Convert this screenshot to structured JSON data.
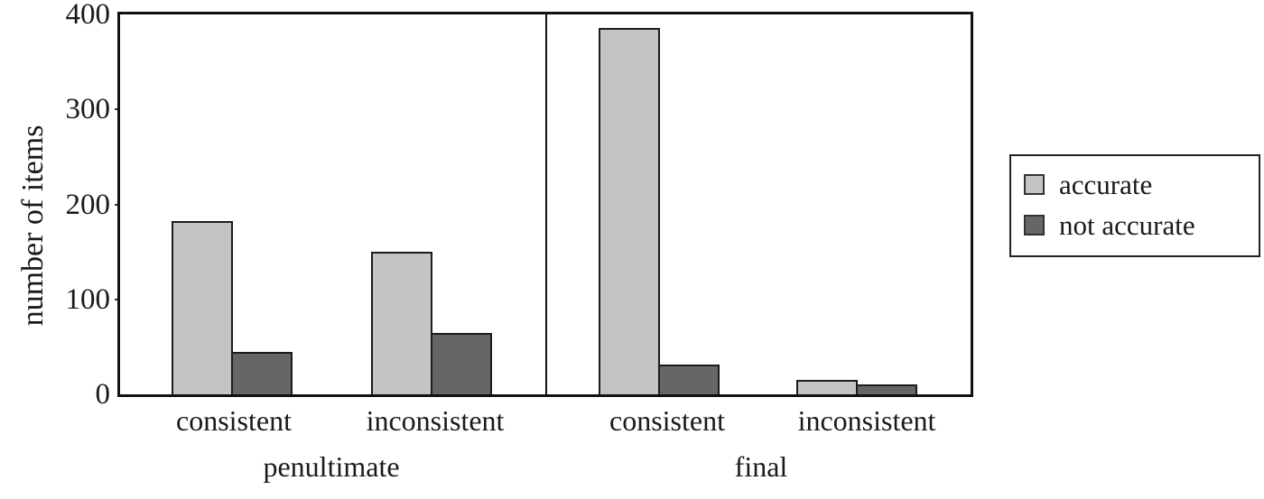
{
  "chart_data": {
    "type": "bar",
    "title": "",
    "xlabel": "",
    "ylabel": "number of items",
    "ylim": [
      0,
      400
    ],
    "yticks": [
      0,
      100,
      200,
      300,
      400
    ],
    "grid": false,
    "legend_position": "right-outside",
    "panels": [
      {
        "label": "penultimate",
        "categories": [
          "consistent",
          "inconsistent"
        ],
        "series": [
          {
            "name": "accurate",
            "values": [
              182,
              150
            ]
          },
          {
            "name": "not accurate",
            "values": [
              45,
              65
            ]
          }
        ]
      },
      {
        "label": "final",
        "categories": [
          "consistent",
          "inconsistent"
        ],
        "series": [
          {
            "name": "accurate",
            "values": [
              386,
              15
            ]
          },
          {
            "name": "not accurate",
            "values": [
              31,
              10
            ]
          }
        ]
      }
    ],
    "legend": {
      "entries": [
        {
          "label": "accurate",
          "color": "#c4c4c4"
        },
        {
          "label": "not accurate",
          "color": "#666666"
        }
      ]
    },
    "colors": {
      "axis": "#111111",
      "bar_border": "#1c1c1c",
      "background": "#ffffff"
    }
  }
}
